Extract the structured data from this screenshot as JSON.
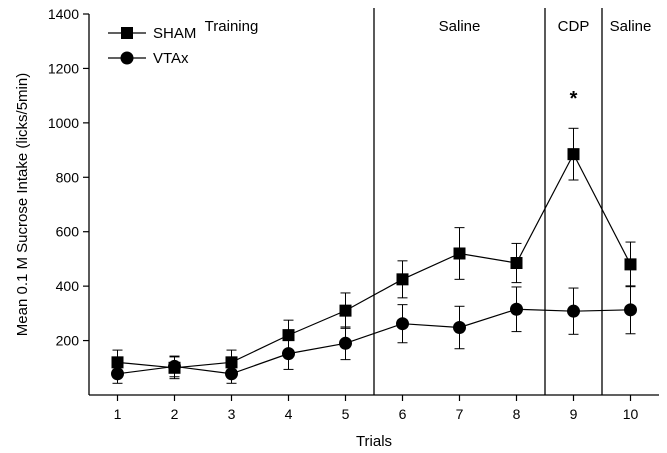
{
  "chart_data": {
    "type": "line",
    "xlabel": "Trials",
    "ylabel": "Mean 0.1 M Sucrose Intake (licks/5min)",
    "x": [
      1,
      2,
      3,
      4,
      5,
      6,
      7,
      8,
      9,
      10
    ],
    "xlim": [
      0.5,
      10.5
    ],
    "ylim": [
      0,
      1400
    ],
    "yticks": [
      200,
      400,
      600,
      800,
      1000,
      1200,
      1400
    ],
    "legend_position": "top-left",
    "series": [
      {
        "name": "SHAM",
        "marker": "square",
        "values": [
          120,
          100,
          120,
          220,
          310,
          425,
          520,
          485,
          885,
          480
        ],
        "errors": [
          45,
          40,
          45,
          55,
          65,
          68,
          95,
          72,
          95,
          82
        ]
      },
      {
        "name": "VTAx",
        "marker": "circle",
        "values": [
          78,
          105,
          78,
          152,
          190,
          262,
          248,
          315,
          308,
          313
        ],
        "errors": [
          35,
          38,
          35,
          58,
          60,
          70,
          78,
          82,
          85,
          88
        ]
      }
    ],
    "phases": [
      {
        "label": "Training",
        "x_center": 3
      },
      {
        "label": "Saline",
        "x_center": 7
      },
      {
        "label": "CDP",
        "x_center": 9
      },
      {
        "label": "Saline",
        "x_center": 10
      }
    ],
    "phase_dividers": [
      5.5,
      8.5,
      9.5
    ],
    "annotations": [
      {
        "text": "*",
        "x": 9,
        "y": 1065
      }
    ]
  }
}
